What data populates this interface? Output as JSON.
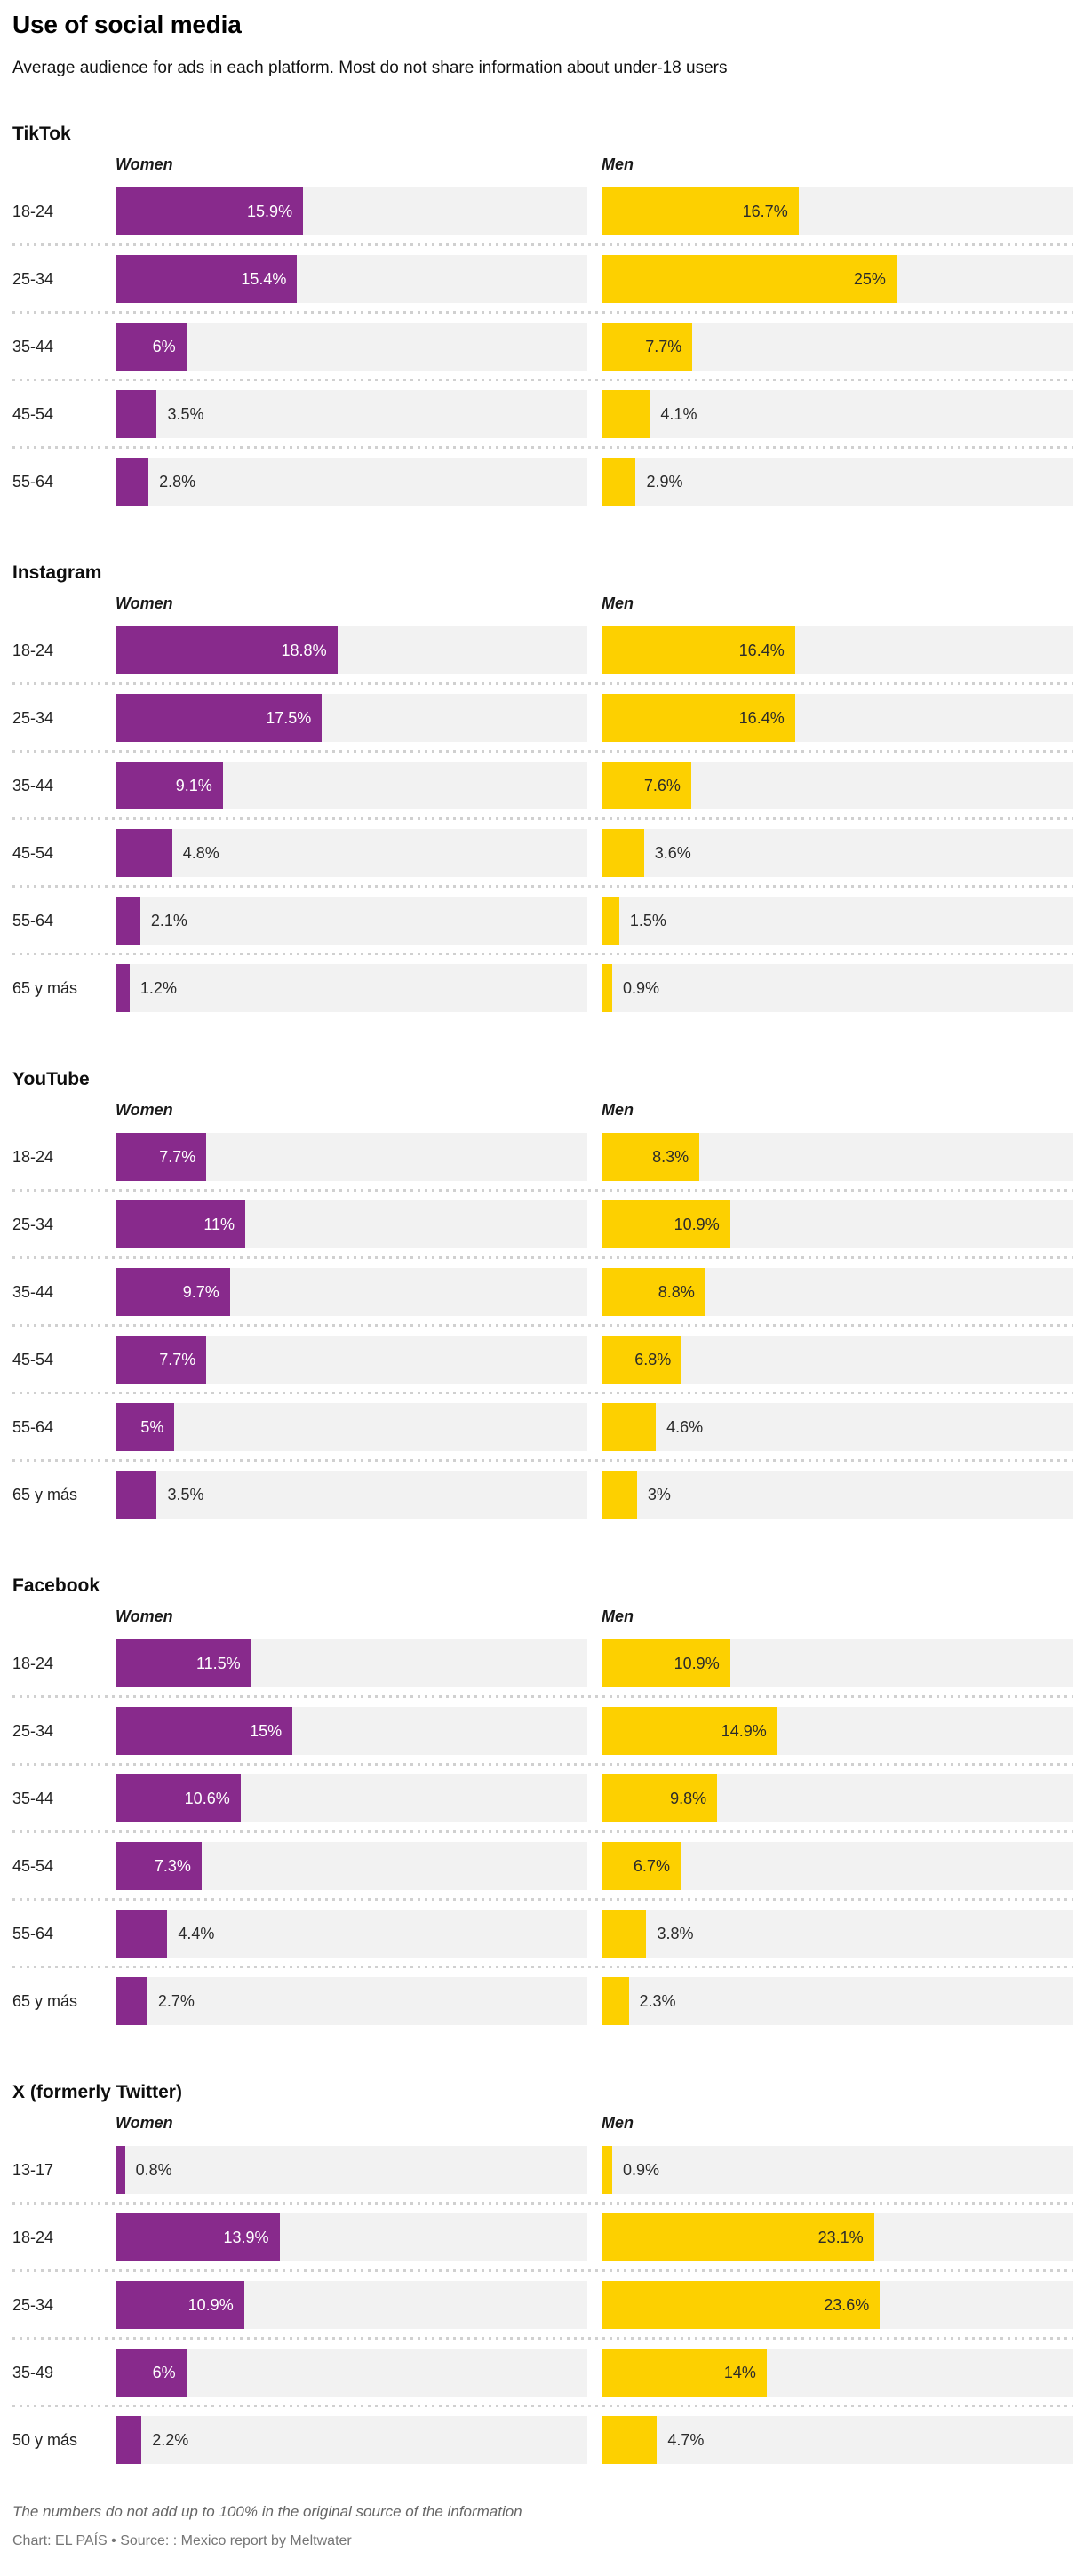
{
  "header": {
    "title": "Use of social media",
    "subtitle": "Average audience for ads in each platform. Most do not share information about under-18 users"
  },
  "columns": {
    "women": "Women",
    "men": "Men"
  },
  "colors": {
    "women_bar": "#882a8c",
    "men_bar": "#fdd000",
    "track": "#f2f2f2",
    "separator_dots": "#d0d0d0",
    "value_inside_women": "#ffffff",
    "value_dark": "#2b2b2b"
  },
  "footer": {
    "note": "The numbers do not add up to 100% in the original source of the information",
    "credit": "Chart: EL PAÍS • Source: : Mexico report by Meltwater"
  },
  "chart_data": {
    "type": "bar",
    "orientation": "horizontal",
    "unit": "%",
    "xlim": [
      0,
      40
    ],
    "grid": false,
    "legend_position": "column-headers",
    "series_names": [
      "Women",
      "Men"
    ],
    "platforms": [
      {
        "name": "TikTok",
        "categories": [
          "18-24",
          "25-34",
          "35-44",
          "45-54",
          "55-64"
        ],
        "series": [
          {
            "name": "Women",
            "values": [
              15.9,
              15.4,
              6,
              3.5,
              2.8
            ]
          },
          {
            "name": "Men",
            "values": [
              16.7,
              25,
              7.7,
              4.1,
              2.9
            ]
          }
        ]
      },
      {
        "name": "Instagram",
        "categories": [
          "18-24",
          "25-34",
          "35-44",
          "45-54",
          "55-64",
          "65 y más"
        ],
        "series": [
          {
            "name": "Women",
            "values": [
              18.8,
              17.5,
              9.1,
              4.8,
              2.1,
              1.2
            ]
          },
          {
            "name": "Men",
            "values": [
              16.4,
              16.4,
              7.6,
              3.6,
              1.5,
              0.9
            ]
          }
        ]
      },
      {
        "name": "YouTube",
        "categories": [
          "18-24",
          "25-34",
          "35-44",
          "45-54",
          "55-64",
          "65 y más"
        ],
        "series": [
          {
            "name": "Women",
            "values": [
              7.7,
              11,
              9.7,
              7.7,
              5,
              3.5
            ]
          },
          {
            "name": "Men",
            "values": [
              8.3,
              10.9,
              8.8,
              6.8,
              4.6,
              3
            ]
          }
        ]
      },
      {
        "name": "Facebook",
        "categories": [
          "18-24",
          "25-34",
          "35-44",
          "45-54",
          "55-64",
          "65 y más"
        ],
        "series": [
          {
            "name": "Women",
            "values": [
              11.5,
              15,
              10.6,
              7.3,
              4.4,
              2.7
            ]
          },
          {
            "name": "Men",
            "values": [
              10.9,
              14.9,
              9.8,
              6.7,
              3.8,
              2.3
            ]
          }
        ]
      },
      {
        "name": "X (formerly Twitter)",
        "categories": [
          "13-17",
          "18-24",
          "25-34",
          "35-49",
          "50 y más"
        ],
        "series": [
          {
            "name": "Women",
            "values": [
              0.8,
              13.9,
              10.9,
              6,
              2.2
            ]
          },
          {
            "name": "Men",
            "values": [
              0.9,
              23.1,
              23.6,
              14,
              4.7
            ]
          }
        ]
      }
    ],
    "label_rule": "value labels shown inside bar right-aligned when value >= 5, otherwise outside right of bar"
  }
}
